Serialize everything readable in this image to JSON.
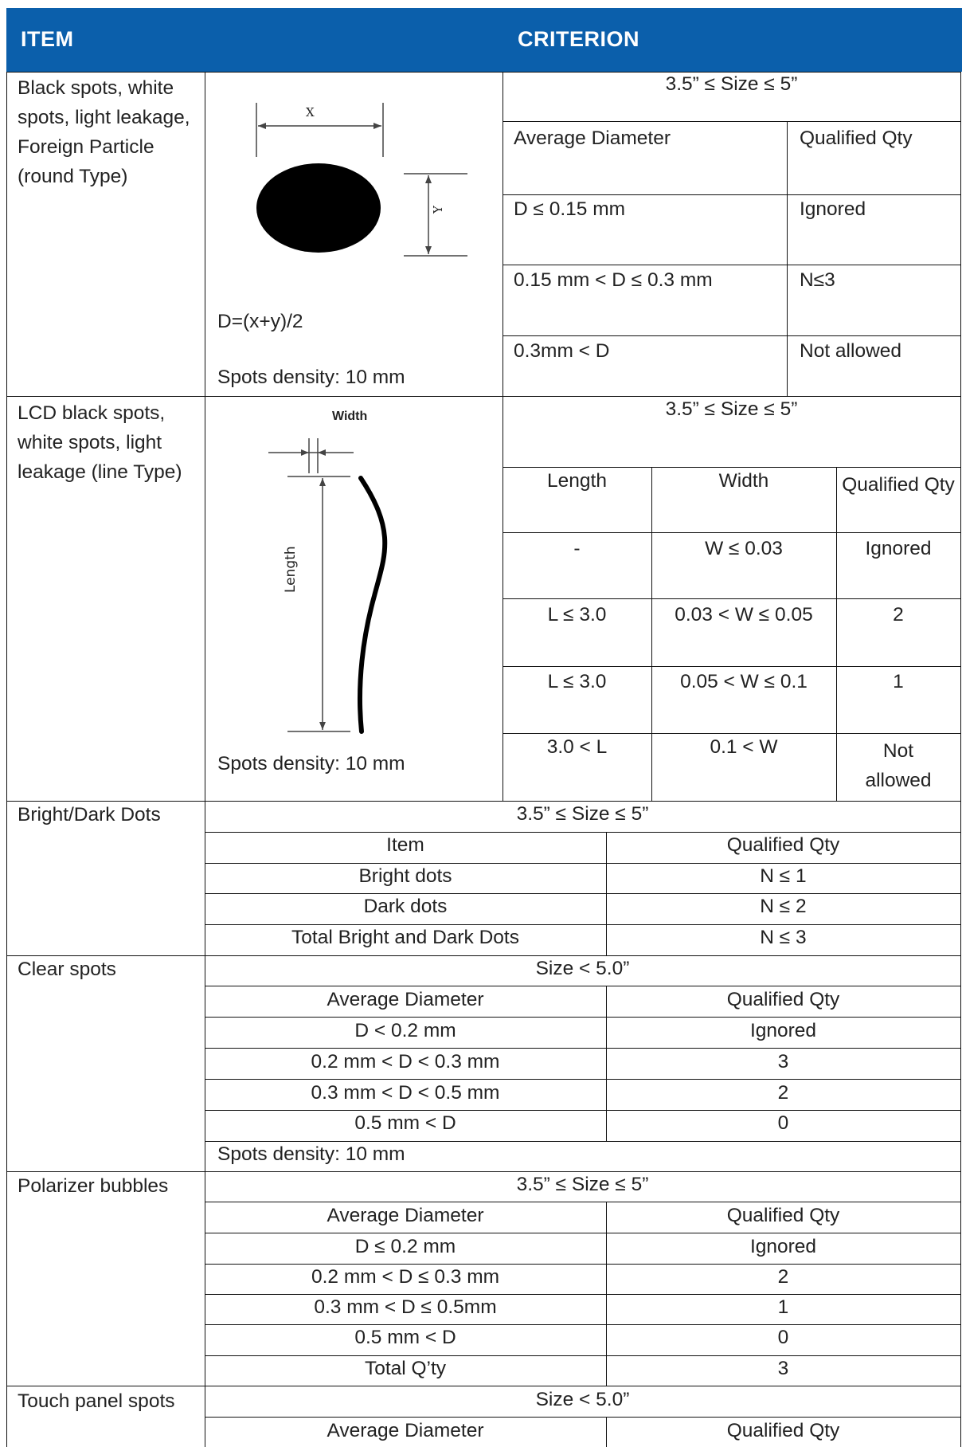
{
  "header": {
    "item": "ITEM",
    "criterion": "CRITERION"
  },
  "r1": {
    "item": "Black spots, white spots, light leakage, Foreign Particle (round Type)",
    "diagram": {
      "x_label": "X",
      "y_label": "Y",
      "formula": "D=(x+y)/2",
      "density": "Spots density: 10 mm"
    },
    "size": "3.5” ≤ Size ≤ 5”",
    "headers": [
      "Average Diameter",
      "Qualified Qty"
    ],
    "rows": [
      [
        "D ≤ 0.15 mm",
        "Ignored"
      ],
      [
        "0.15 mm < D ≤ 0.3 mm",
        "N≤3"
      ],
      [
        "0.3mm < D",
        "Not allowed"
      ]
    ]
  },
  "r2": {
    "item": "LCD black spots, white spots, light leakage (line Type)",
    "diagram": {
      "width_label": "Width",
      "length_label": "Length",
      "density": "Spots density: 10 mm"
    },
    "size": "3.5” ≤ Size ≤ 5”",
    "headers": [
      "Length",
      "Width",
      "Qualified Qty"
    ],
    "rows": [
      [
        "-",
        "W ≤ 0.03",
        "Ignored"
      ],
      [
        "L ≤ 3.0",
        "0.03 < W ≤ 0.05",
        "2"
      ],
      [
        "L ≤ 3.0",
        "0.05 < W ≤ 0.1",
        "1"
      ],
      [
        "3.0 < L",
        "0.1 < W",
        "Not allowed"
      ]
    ]
  },
  "r3": {
    "item": "Bright/Dark Dots",
    "size": "3.5” ≤ Size ≤ 5”",
    "headers": [
      "Item",
      "Qualified Qty"
    ],
    "rows": [
      [
        "Bright dots",
        "N ≤ 1"
      ],
      [
        "Dark dots",
        "N ≤ 2"
      ],
      [
        "Total Bright and Dark Dots",
        "N ≤ 3"
      ]
    ]
  },
  "r4": {
    "item": "Clear spots",
    "size": "Size < 5.0”",
    "headers": [
      "Average Diameter",
      "Qualified Qty"
    ],
    "rows": [
      [
        "D < 0.2 mm",
        "Ignored"
      ],
      [
        "0.2 mm < D < 0.3 mm",
        "3"
      ],
      [
        "0.3 mm < D < 0.5 mm",
        "2"
      ],
      [
        "0.5 mm < D",
        "0"
      ]
    ],
    "density": "Spots density: 10 mm"
  },
  "r5": {
    "item": "Polarizer bubbles",
    "size": "3.5” ≤ Size ≤ 5”",
    "headers": [
      "Average Diameter",
      "Qualified Qty"
    ],
    "rows": [
      [
        "D ≤ 0.2 mm",
        "Ignored"
      ],
      [
        "0.2 mm < D ≤ 0.3 mm",
        "2"
      ],
      [
        "0.3 mm < D ≤ 0.5mm",
        "1"
      ],
      [
        "0.5 mm < D",
        "0"
      ],
      [
        "Total Q’ty",
        "3"
      ]
    ]
  },
  "r6": {
    "item": "Touch panel spots",
    "size": "Size < 5.0”",
    "headers": [
      "Average Diameter",
      "Qualified Qty"
    ]
  }
}
